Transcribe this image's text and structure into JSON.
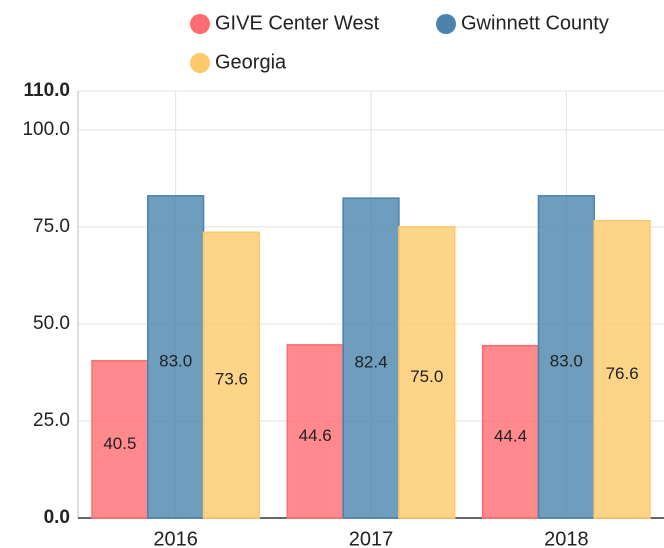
{
  "chart_data": {
    "type": "bar",
    "categories": [
      "2016",
      "2017",
      "2018"
    ],
    "series": [
      {
        "name": "GIVE Center West",
        "color": "#ff6b70",
        "values": [
          40.5,
          44.6,
          44.4
        ],
        "value_labels": [
          "40.5",
          "44.6",
          "44.4"
        ]
      },
      {
        "name": "Gwinnett County",
        "color": "#4a84ad",
        "values": [
          83.0,
          82.4,
          83.0
        ],
        "value_labels": [
          "83.0",
          "82.4",
          "83.0"
        ]
      },
      {
        "name": "Georgia",
        "color": "#fec96a",
        "values": [
          73.6,
          75.0,
          76.6
        ],
        "value_labels": [
          "73.6",
          "75.0",
          "76.6"
        ]
      }
    ],
    "ylim": [
      0,
      110
    ],
    "yticks": [
      {
        "value": 0,
        "label": "0.0"
      },
      {
        "value": 25,
        "label": "25.0"
      },
      {
        "value": 50,
        "label": "50.0"
      },
      {
        "value": 75,
        "label": "75.0"
      },
      {
        "value": 100,
        "label": "100.0"
      },
      {
        "value": 110,
        "label": "110.0"
      }
    ],
    "grid": true,
    "legend": "top"
  }
}
